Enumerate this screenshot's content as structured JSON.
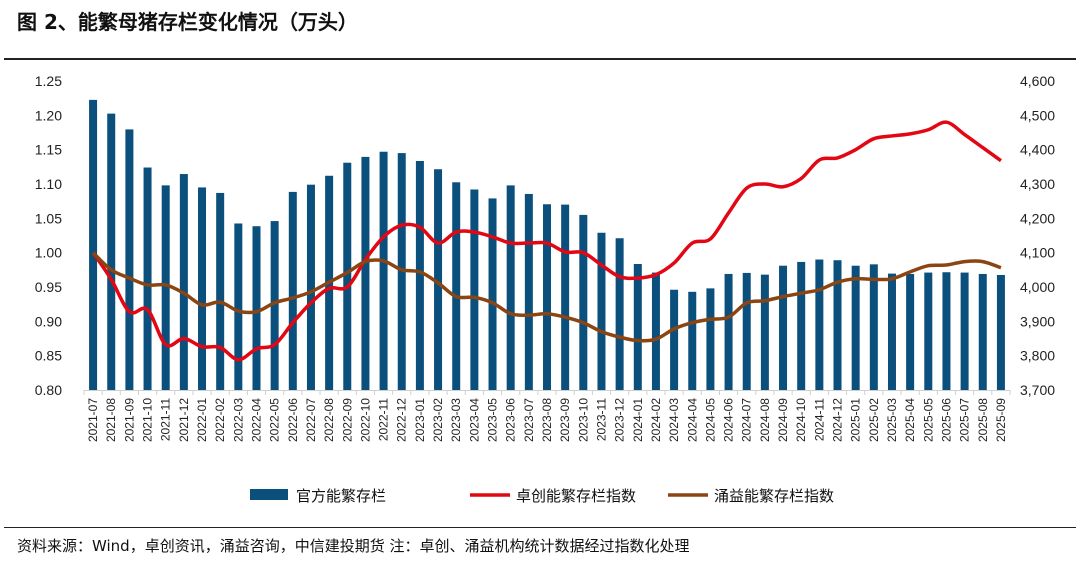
{
  "title": "图 2、能繁母猪存栏变化情况（万头）",
  "source": "资料来源：Wind，卓创资讯，涌益咨询，中信建投期货  注：卓创、涌益机构统计数据经过指数化处理",
  "chart_data": {
    "type": "bar+line",
    "categories": [
      "2021-07",
      "2021-08",
      "2021-09",
      "2021-10",
      "2021-11",
      "2021-12",
      "2022-01",
      "2022-02",
      "2022-03",
      "2022-04",
      "2022-05",
      "2022-06",
      "2022-07",
      "2022-08",
      "2022-09",
      "2022-10",
      "2022-11",
      "2022-12",
      "2023-01",
      "2023-02",
      "2023-03",
      "2023-04",
      "2023-05",
      "2023-06",
      "2023-07",
      "2023-08",
      "2023-09",
      "2023-10",
      "2023-11",
      "2023-12",
      "2024-01",
      "2024-02",
      "2024-03",
      "2024-04",
      "2024-05",
      "2024-06",
      "2024-07",
      "2024-08",
      "2024-09",
      "2024-10",
      "2024-11",
      "2024-12",
      "2025-01",
      "2025-02",
      "2025-03",
      "2025-04",
      "2025-05",
      "2025-06",
      "2025-07",
      "2025-08",
      "2025-09"
    ],
    "left_axis": {
      "ylim": [
        0.8,
        1.25
      ],
      "ticks": [
        "0.80",
        "0.85",
        "0.90",
        "0.95",
        "1.00",
        "1.05",
        "1.10",
        "1.15",
        "1.20",
        "1.25"
      ]
    },
    "right_axis": {
      "ylim": [
        3700,
        4600
      ],
      "ticks": [
        "3,700",
        "3,800",
        "3,900",
        "4,000",
        "4,100",
        "4,200",
        "4,300",
        "4,400",
        "4,500",
        "4,600"
      ]
    },
    "legend_position": "bottom",
    "grid": false,
    "series": [
      {
        "name": "官方能繁存栏",
        "type": "bar",
        "axis": "right",
        "color": "#0b4f7c",
        "values": [
          4545,
          4505,
          4459,
          4348,
          4296,
          4329,
          4290,
          4274,
          4185,
          4177,
          4192,
          4277,
          4298,
          4324,
          4362,
          4379,
          4394,
          4390,
          4367,
          4343,
          4305,
          4284,
          4258,
          4296,
          4271,
          4241,
          4240,
          4210,
          4158,
          4142,
          4067,
          4042,
          3992,
          3986,
          3996,
          4038,
          4041,
          4036,
          4062,
          4073,
          4080,
          4078,
          4062,
          4066,
          4039,
          4038,
          4042,
          4043,
          4042,
          4038,
          4035
        ]
      },
      {
        "name": "卓创能繁存栏指数",
        "type": "line",
        "axis": "left",
        "color": "#e30613",
        "values": [
          1.0,
          0.961,
          0.914,
          0.917,
          0.866,
          0.875,
          0.863,
          0.862,
          0.844,
          0.86,
          0.866,
          0.898,
          0.927,
          0.948,
          0.95,
          0.99,
          1.023,
          1.04,
          1.037,
          1.014,
          1.03,
          1.03,
          1.023,
          1.014,
          1.014,
          1.014,
          1.001,
          1.0,
          0.982,
          0.965,
          0.963,
          0.968,
          0.985,
          1.014,
          1.02,
          1.058,
          1.094,
          1.1,
          1.096,
          1.108,
          1.135,
          1.138,
          1.15,
          1.166,
          1.17,
          1.173,
          1.179,
          1.19,
          1.172,
          1.153,
          1.134
        ]
      },
      {
        "name": "涌益能繁存栏指数",
        "type": "line",
        "axis": "left",
        "color": "#8b4513",
        "values": [
          1.0,
          0.975,
          0.963,
          0.953,
          0.953,
          0.941,
          0.924,
          0.928,
          0.915,
          0.914,
          0.927,
          0.934,
          0.943,
          0.957,
          0.971,
          0.987,
          0.988,
          0.975,
          0.972,
          0.956,
          0.936,
          0.935,
          0.927,
          0.911,
          0.909,
          0.911,
          0.906,
          0.898,
          0.885,
          0.877,
          0.872,
          0.874,
          0.889,
          0.898,
          0.903,
          0.906,
          0.927,
          0.93,
          0.936,
          0.941,
          0.946,
          0.957,
          0.962,
          0.961,
          0.962,
          0.972,
          0.981,
          0.982,
          0.987,
          0.987,
          0.978
        ]
      }
    ]
  }
}
